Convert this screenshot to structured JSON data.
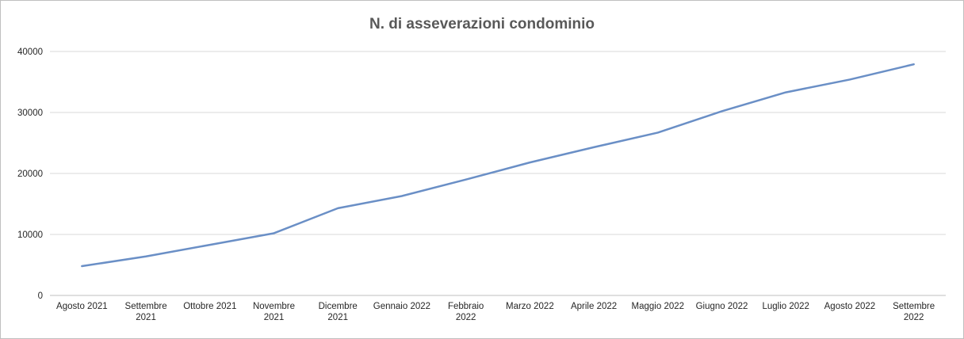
{
  "chart_data": {
    "type": "line",
    "title": "N. di asseverazioni condominio",
    "xlabel": "",
    "ylabel": "",
    "ylim": [
      0,
      40000
    ],
    "yticks": [
      "0",
      "10000",
      "20000",
      "30000",
      "40000"
    ],
    "grid": true,
    "legend": "none",
    "categories": [
      [
        "Agosto 2021"
      ],
      [
        "Settembre",
        "2021"
      ],
      [
        "Ottobre 2021"
      ],
      [
        "Novembre",
        "2021"
      ],
      [
        "Dicembre",
        "2021"
      ],
      [
        "Gennaio 2022"
      ],
      [
        "Febbraio",
        "2022"
      ],
      [
        "Marzo 2022"
      ],
      [
        "Aprile 2022"
      ],
      [
        "Maggio 2022"
      ],
      [
        "Giugno 2022"
      ],
      [
        "Luglio 2022"
      ],
      [
        "Agosto 2022"
      ],
      [
        "Settembre",
        "2022"
      ]
    ],
    "series": [
      {
        "values": [
          4800,
          6400,
          8300,
          10200,
          14300,
          16300,
          19000,
          21800,
          24300,
          26700,
          30200,
          33300,
          35400,
          37900
        ]
      }
    ]
  },
  "colors": {
    "line": "#6a8fc6",
    "grid": "#d9d9d9",
    "axis": "#bfbfbf",
    "title": "#595959",
    "text": "#262626"
  }
}
